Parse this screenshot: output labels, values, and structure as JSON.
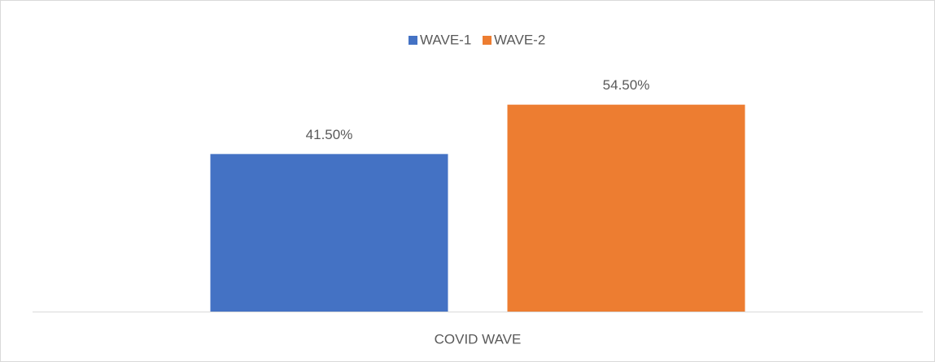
{
  "chart_data": {
    "type": "bar",
    "categories": [
      "COVID WAVE"
    ],
    "series": [
      {
        "name": "WAVE-1",
        "color": "#4472c4",
        "values": [
          41.5
        ],
        "value_labels": [
          "41.50%"
        ]
      },
      {
        "name": "WAVE-2",
        "color": "#ed7d31",
        "values": [
          54.5
        ],
        "value_labels": [
          "54.50%"
        ]
      }
    ],
    "ylim": [
      0,
      60
    ],
    "grid": false,
    "legend": "top"
  }
}
